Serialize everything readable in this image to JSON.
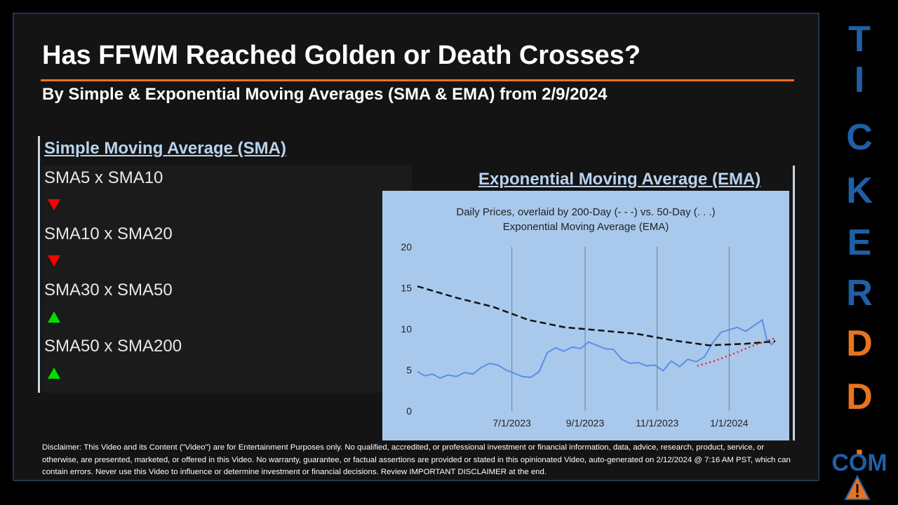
{
  "title": "Has FFWM Reached Golden or Death Crosses?",
  "subtitle": "By Simple & Exponential Moving Averages (SMA & EMA) from 2/9/2024",
  "sma": {
    "heading": "Simple Moving Average (SMA)",
    "rows": [
      {
        "label": "SMA5 x SMA10",
        "direction": "down"
      },
      {
        "label": "SMA10 x SMA20",
        "direction": "down"
      },
      {
        "label": "SMA30 x SMA50",
        "direction": "up"
      },
      {
        "label": "SMA50 x SMA200",
        "direction": "up"
      }
    ]
  },
  "ema": {
    "heading": "Exponential Moving Average (EMA)"
  },
  "chart_data": {
    "type": "line",
    "title_line1": "Daily Prices, overlaid by 200-Day (- - -) vs. 50-Day (. . .)",
    "title_line2": "Exponential Moving Average (EMA)",
    "ylim": [
      0,
      20
    ],
    "yticks": [
      0,
      5,
      10,
      15,
      20
    ],
    "xlim": [
      "2023-04-12",
      "2024-02-09"
    ],
    "xticks": [
      "7/1/2023",
      "9/1/2023",
      "11/1/2023",
      "1/1/2024"
    ],
    "xtick_dates": [
      "2023-07-01",
      "2023-09-01",
      "2023-11-01",
      "2024-01-01"
    ],
    "grid": "vertical",
    "series": [
      {
        "style": "price",
        "color": "#5a8fe6",
        "points": [
          [
            "2023-04-12",
            4.8
          ],
          [
            "2023-04-18",
            4.3
          ],
          [
            "2023-04-25",
            4.5
          ],
          [
            "2023-05-01",
            4.0
          ],
          [
            "2023-05-08",
            4.4
          ],
          [
            "2023-05-15",
            4.2
          ],
          [
            "2023-05-22",
            4.7
          ],
          [
            "2023-05-29",
            4.5
          ],
          [
            "2023-06-05",
            5.3
          ],
          [
            "2023-06-12",
            5.8
          ],
          [
            "2023-06-19",
            5.6
          ],
          [
            "2023-06-26",
            5.0
          ],
          [
            "2023-07-03",
            4.6
          ],
          [
            "2023-07-10",
            4.2
          ],
          [
            "2023-07-17",
            4.1
          ],
          [
            "2023-07-24",
            4.8
          ],
          [
            "2023-07-31",
            7.1
          ],
          [
            "2023-08-07",
            7.7
          ],
          [
            "2023-08-14",
            7.3
          ],
          [
            "2023-08-21",
            7.8
          ],
          [
            "2023-08-28",
            7.6
          ],
          [
            "2023-09-04",
            8.4
          ],
          [
            "2023-09-11",
            8.0
          ],
          [
            "2023-09-18",
            7.6
          ],
          [
            "2023-09-25",
            7.5
          ],
          [
            "2023-10-02",
            6.3
          ],
          [
            "2023-10-09",
            5.8
          ],
          [
            "2023-10-16",
            5.9
          ],
          [
            "2023-10-23",
            5.5
          ],
          [
            "2023-10-30",
            5.6
          ],
          [
            "2023-11-06",
            4.9
          ],
          [
            "2023-11-13",
            6.1
          ],
          [
            "2023-11-20",
            5.4
          ],
          [
            "2023-11-27",
            6.3
          ],
          [
            "2023-12-04",
            6.0
          ],
          [
            "2023-12-11",
            6.6
          ],
          [
            "2023-12-18",
            8.3
          ],
          [
            "2023-12-25",
            9.6
          ],
          [
            "2024-01-01",
            9.9
          ],
          [
            "2024-01-08",
            10.2
          ],
          [
            "2024-01-15",
            9.7
          ],
          [
            "2024-01-22",
            10.4
          ],
          [
            "2024-01-29",
            11.1
          ],
          [
            "2024-02-02",
            8.6
          ],
          [
            "2024-02-06",
            8.1
          ],
          [
            "2024-02-09",
            8.6
          ]
        ]
      },
      {
        "style": "dashed",
        "color": "#111111",
        "points": [
          [
            "2023-04-12",
            15.2
          ],
          [
            "2023-05-15",
            13.8
          ],
          [
            "2023-06-15",
            12.7
          ],
          [
            "2023-07-15",
            11.1
          ],
          [
            "2023-08-15",
            10.2
          ],
          [
            "2023-09-15",
            9.8
          ],
          [
            "2023-10-15",
            9.4
          ],
          [
            "2023-11-15",
            8.6
          ],
          [
            "2023-12-15",
            8.0
          ],
          [
            "2024-01-15",
            8.2
          ],
          [
            "2024-02-09",
            8.5
          ]
        ]
      },
      {
        "style": "dotted",
        "color": "#e8202a",
        "points": [
          [
            "2023-12-05",
            5.5
          ],
          [
            "2023-12-20",
            6.1
          ],
          [
            "2024-01-05",
            7.0
          ],
          [
            "2024-01-20",
            7.9
          ],
          [
            "2024-02-09",
            8.9
          ]
        ]
      }
    ]
  },
  "disclaimer": "Disclaimer: This Video and its Content (\"Video\") are for Entertainment Purposes only. No qualified, accredited, or professional investment or financial information, data, advice, research, product, service, or otherwise, are presented, marketed, or offered in this Video. No warranty, guarantee, or factual assertions are provided or stated in this opinionated Video, auto-generated on 2/12/2024 @ 7:16 AM PST, which can contain errors. Never use this Video to influence or determine investment or financial decisions. Review IMPORTANT DISCLAIMER at the end.",
  "brand": {
    "letters": [
      "T",
      "I",
      "C",
      "K",
      "E",
      "R",
      "D",
      "D",
      ".",
      "COM"
    ],
    "blue": "#1f5fa8",
    "orange": "#e8741e"
  },
  "colors": {
    "accent_rule": "#e8741e",
    "heading": "#b9d3ee",
    "chart_bg": "#a9c9ec",
    "down": "#ff0000",
    "up": "#00dd00"
  }
}
